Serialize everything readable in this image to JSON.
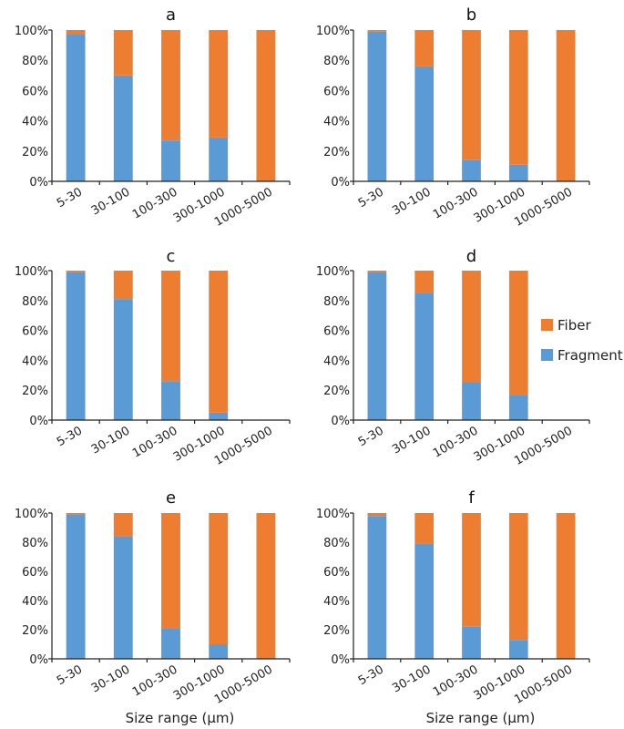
{
  "chart_data": {
    "type": "bar",
    "stacked": true,
    "percent_stacked": true,
    "xlabel": "Size range (µm)",
    "ylabel": "",
    "ylim": [
      0,
      100
    ],
    "yticks": [
      "0%",
      "20%",
      "40%",
      "60%",
      "80%",
      "100%"
    ],
    "categories": [
      "5-30",
      "30-100",
      "100-300",
      "300-1000",
      "1000-5000"
    ],
    "legend": {
      "placement": "right",
      "entries": [
        {
          "name": "Fiber",
          "color": "#ED7D31"
        },
        {
          "name": "Fragment",
          "color": "#5B9BD5"
        }
      ]
    },
    "panels": [
      {
        "title": "a",
        "series": [
          {
            "name": "Fragment",
            "values": [
              97,
              70,
              27,
              29,
              0
            ]
          },
          {
            "name": "Fiber",
            "values": [
              3,
              30,
              73,
              71,
              100
            ]
          }
        ]
      },
      {
        "title": "b",
        "series": [
          {
            "name": "Fragment",
            "values": [
              99,
              76,
              14,
              11,
              0
            ]
          },
          {
            "name": "Fiber",
            "values": [
              1,
              24,
              86,
              89,
              100
            ]
          }
        ]
      },
      {
        "title": "c",
        "series": [
          {
            "name": "Fragment",
            "values": [
              99,
              81,
              26,
              5,
              null
            ]
          },
          {
            "name": "Fiber",
            "values": [
              1,
              19,
              74,
              95,
              null
            ]
          }
        ]
      },
      {
        "title": "d",
        "series": [
          {
            "name": "Fragment",
            "values": [
              99,
              85,
              25,
              17,
              null
            ]
          },
          {
            "name": "Fiber",
            "values": [
              1,
              15,
              75,
              83,
              null
            ]
          }
        ]
      },
      {
        "title": "e",
        "series": [
          {
            "name": "Fragment",
            "values": [
              99,
              84,
              21,
              10,
              0
            ]
          },
          {
            "name": "Fiber",
            "values": [
              1,
              16,
              79,
              90,
              100
            ]
          }
        ]
      },
      {
        "title": "f",
        "series": [
          {
            "name": "Fragment",
            "values": [
              98,
              79,
              22,
              13,
              0
            ]
          },
          {
            "name": "Fiber",
            "values": [
              2,
              21,
              78,
              87,
              100
            ]
          }
        ]
      }
    ]
  }
}
